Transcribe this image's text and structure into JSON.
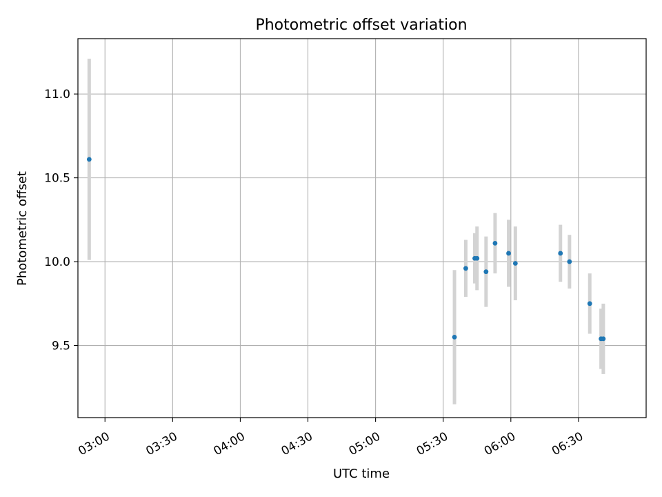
{
  "chart_data": {
    "type": "scatter",
    "title": "Photometric offset variation",
    "xlabel": "UTC time",
    "ylabel": "Photometric offset",
    "xlim": [
      "02:48",
      "07:00"
    ],
    "ylim": [
      9.07,
      11.33
    ],
    "xticks": [
      "03:00",
      "03:30",
      "04:00",
      "04:30",
      "05:00",
      "05:30",
      "06:00",
      "06:30"
    ],
    "yticks": [
      9.5,
      10.0,
      10.5,
      11.0
    ],
    "ytick_labels": [
      "9.5",
      "10.0",
      "10.5",
      "11.0"
    ],
    "grid": true,
    "marker_color": "#1f77b4",
    "errorbar_color": "#d3d3d3",
    "series": [
      {
        "points": [
          {
            "x": "02:53",
            "y": 10.61,
            "err": 0.6
          },
          {
            "x": "05:35",
            "y": 9.55,
            "err": 0.4
          },
          {
            "x": "05:40",
            "y": 9.96,
            "err": 0.17
          },
          {
            "x": "05:44",
            "y": 10.02,
            "err": 0.15
          },
          {
            "x": "05:45",
            "y": 10.02,
            "err": 0.19
          },
          {
            "x": "05:49",
            "y": 9.94,
            "err": 0.21
          },
          {
            "x": "05:53",
            "y": 10.11,
            "err": 0.18
          },
          {
            "x": "05:59",
            "y": 10.05,
            "err": 0.2
          },
          {
            "x": "06:02",
            "y": 9.99,
            "err": 0.22
          },
          {
            "x": "06:22",
            "y": 10.05,
            "err": 0.17
          },
          {
            "x": "06:26",
            "y": 10.0,
            "err": 0.16
          },
          {
            "x": "06:35",
            "y": 9.75,
            "err": 0.18
          },
          {
            "x": "06:40",
            "y": 9.54,
            "err": 0.18
          },
          {
            "x": "06:41",
            "y": 9.54,
            "err": 0.21
          }
        ]
      }
    ]
  }
}
